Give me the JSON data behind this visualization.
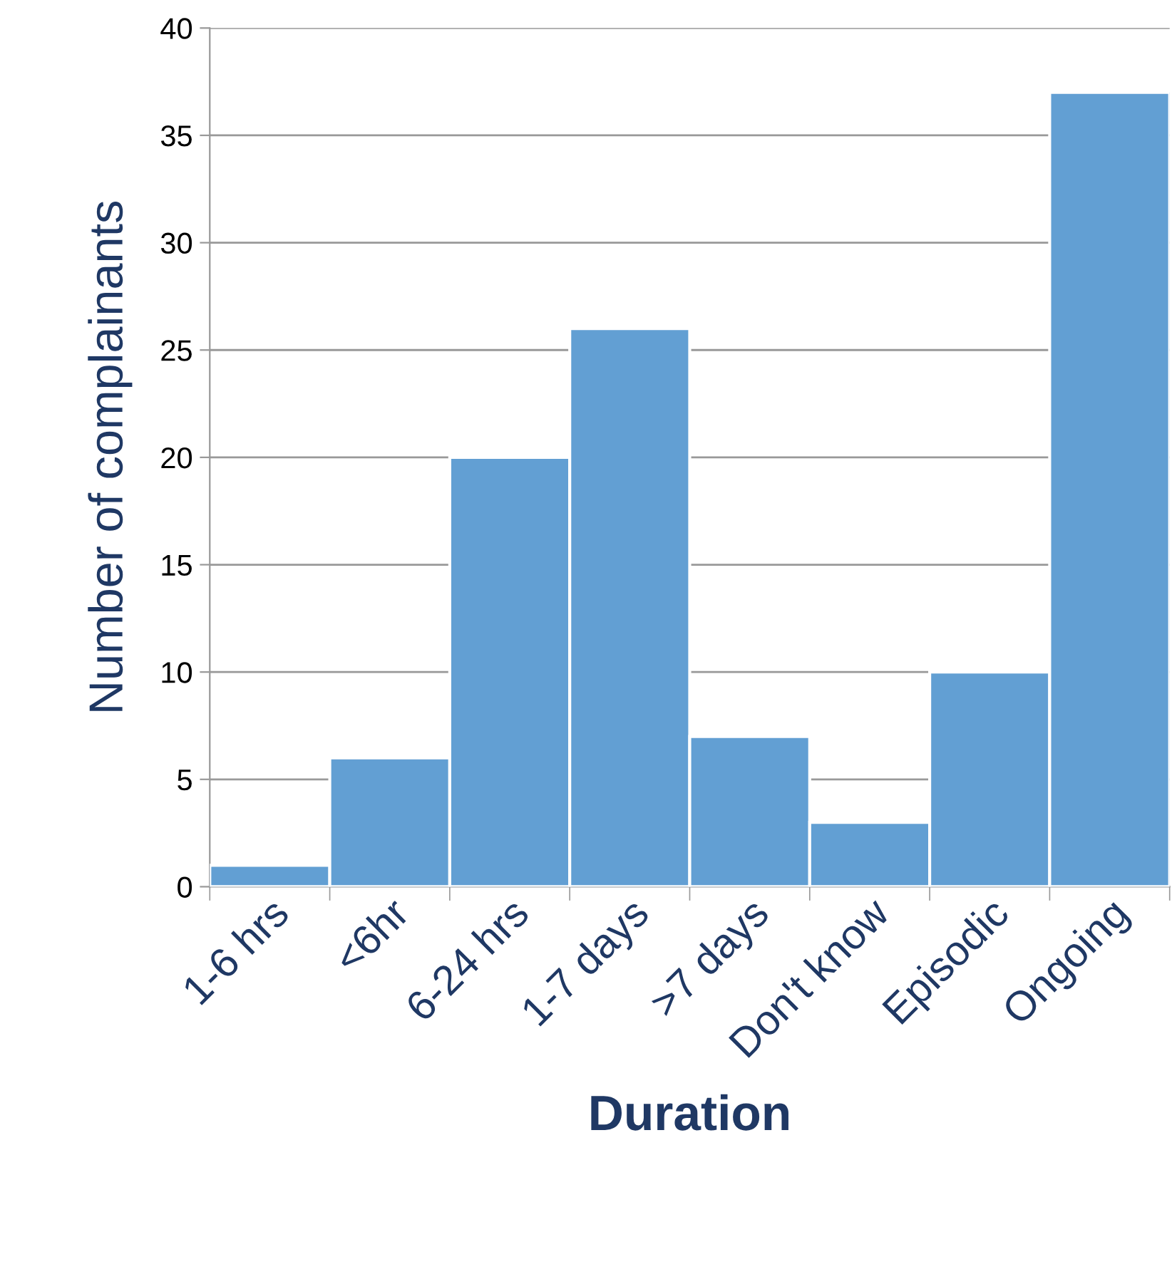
{
  "chart_data": {
    "type": "bar",
    "xlabel": "Duration",
    "ylabel": "Number of complainants",
    "categories": [
      "1-6 hrs",
      "<6hr",
      "6-24 hrs",
      "1-7 days",
      ">7 days",
      "Don't know",
      "Episodic",
      "Ongoing"
    ],
    "values": [
      1,
      6,
      20,
      26,
      7,
      3,
      10,
      37
    ],
    "color": "#629fd3",
    "ylim": [
      0,
      40
    ],
    "yticks": [
      0,
      5,
      10,
      15,
      20,
      25,
      30,
      35,
      40
    ],
    "grid": "y",
    "legend": false
  }
}
